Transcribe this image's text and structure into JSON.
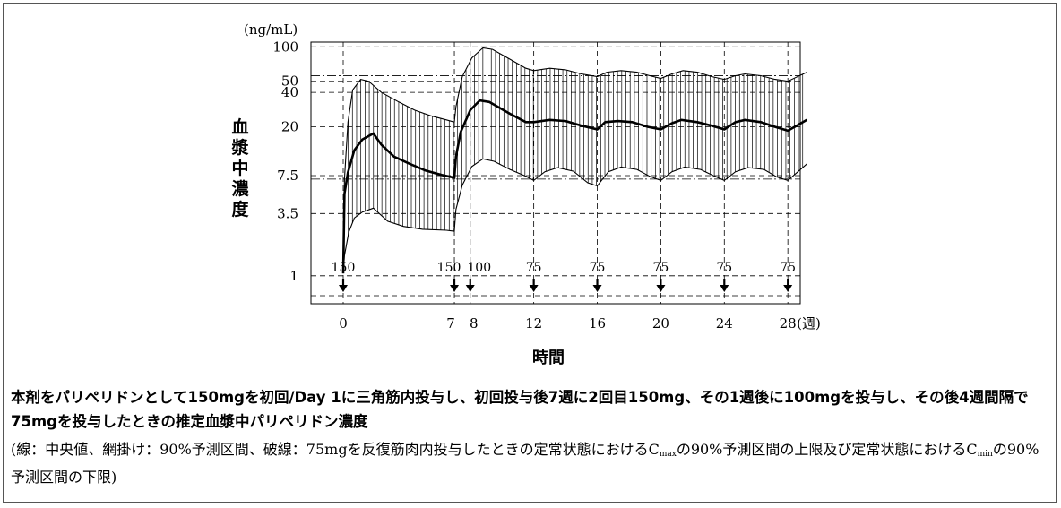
{
  "chart_data": {
    "type": "line",
    "title": "",
    "ylabel": "血漿中濃度",
    "yunit": "(ng/mL)",
    "xlabel": "時間",
    "xunit": "(週)",
    "yscale": "log",
    "ylim": [
      0.57,
      110
    ],
    "xlim": [
      -5,
      29.2
    ],
    "yticks": [
      1,
      3.5,
      7.5,
      20,
      40,
      50,
      100
    ],
    "xticks": [
      0,
      7,
      8,
      12,
      16,
      20,
      24,
      28
    ],
    "grid": true,
    "legend": "none",
    "dose_marks": [
      {
        "week": 0,
        "label": "150"
      },
      {
        "week": 7,
        "label": "150"
      },
      {
        "week": 8,
        "label": "100"
      },
      {
        "week": 12,
        "label": "75"
      },
      {
        "week": 16,
        "label": "75"
      },
      {
        "week": 20,
        "label": "75"
      },
      {
        "week": 24,
        "label": "75"
      },
      {
        "week": 28,
        "label": "75"
      }
    ],
    "reference_lines": [
      56,
      7.0
    ],
    "series": [
      {
        "name": "中央値",
        "points": [
          [
            0,
            1.05
          ],
          [
            0.08,
            5.2
          ],
          [
            0.3,
            8
          ],
          [
            0.7,
            12.5
          ],
          [
            1.2,
            15.5
          ],
          [
            1.9,
            17.5
          ],
          [
            2.4,
            14
          ],
          [
            3.2,
            11
          ],
          [
            4.2,
            9.5
          ],
          [
            5.2,
            8.3
          ],
          [
            6.2,
            7.6
          ],
          [
            7,
            7.2
          ],
          [
            7.1,
            11
          ],
          [
            7.4,
            18
          ],
          [
            8,
            28
          ],
          [
            8.6,
            34
          ],
          [
            9.2,
            33
          ],
          [
            10.5,
            26
          ],
          [
            11.5,
            22
          ],
          [
            12,
            22
          ],
          [
            13,
            23
          ],
          [
            14,
            22.5
          ],
          [
            15,
            20.5
          ],
          [
            16,
            19
          ],
          [
            16.5,
            22
          ],
          [
            17.3,
            22.5
          ],
          [
            18.2,
            22
          ],
          [
            19.2,
            20
          ],
          [
            20,
            19
          ],
          [
            20.7,
            21.5
          ],
          [
            21.3,
            23
          ],
          [
            22.3,
            22
          ],
          [
            23.2,
            20.5
          ],
          [
            24,
            19
          ],
          [
            24.7,
            22
          ],
          [
            25.3,
            23
          ],
          [
            26.3,
            22
          ],
          [
            27.2,
            20
          ],
          [
            28,
            18.5
          ],
          [
            29.2,
            23
          ]
        ]
      },
      {
        "name": "90%予測区間 上限",
        "points": [
          [
            0,
            1.05
          ],
          [
            0.08,
            7
          ],
          [
            0.3,
            22
          ],
          [
            0.6,
            42
          ],
          [
            1.1,
            52
          ],
          [
            1.6,
            50
          ],
          [
            2.4,
            40
          ],
          [
            3.5,
            33
          ],
          [
            4.5,
            28
          ],
          [
            5.5,
            25
          ],
          [
            6.5,
            23
          ],
          [
            7,
            22
          ],
          [
            7.1,
            30
          ],
          [
            7.5,
            55
          ],
          [
            8.1,
            80
          ],
          [
            8.8,
            98
          ],
          [
            9.4,
            95
          ],
          [
            10.5,
            78
          ],
          [
            11.5,
            65
          ],
          [
            12,
            62
          ],
          [
            13,
            65
          ],
          [
            14,
            63
          ],
          [
            15,
            58
          ],
          [
            16,
            55
          ],
          [
            16.6,
            60
          ],
          [
            17.5,
            62
          ],
          [
            18.5,
            60
          ],
          [
            19.3,
            56
          ],
          [
            20,
            53
          ],
          [
            20.7,
            58
          ],
          [
            21.4,
            62
          ],
          [
            22.3,
            60
          ],
          [
            23.2,
            55
          ],
          [
            24,
            52
          ],
          [
            24.7,
            56
          ],
          [
            25.3,
            58
          ],
          [
            26.3,
            56
          ],
          [
            27.2,
            52
          ],
          [
            28,
            50
          ],
          [
            29.2,
            60
          ]
        ]
      },
      {
        "name": "90%予測区間 下限",
        "points": [
          [
            0,
            1.05
          ],
          [
            0.08,
            1.5
          ],
          [
            0.35,
            2.4
          ],
          [
            0.7,
            3.2
          ],
          [
            1.2,
            3.6
          ],
          [
            1.9,
            3.9
          ],
          [
            2.8,
            3.0
          ],
          [
            3.8,
            2.7
          ],
          [
            5,
            2.55
          ],
          [
            6.5,
            2.5
          ],
          [
            7,
            2.45
          ],
          [
            7.1,
            3.8
          ],
          [
            7.5,
            6.2
          ],
          [
            8.1,
            9
          ],
          [
            8.8,
            10.5
          ],
          [
            9.5,
            10
          ],
          [
            10.5,
            8.5
          ],
          [
            11.5,
            7.4
          ],
          [
            12,
            6.8
          ],
          [
            12.7,
            8.1
          ],
          [
            13.5,
            8.8
          ],
          [
            14.5,
            8.2
          ],
          [
            15.4,
            6.5
          ],
          [
            16,
            6.1
          ],
          [
            16.7,
            8.1
          ],
          [
            17.5,
            8.9
          ],
          [
            18.5,
            8.5
          ],
          [
            19.3,
            7.4
          ],
          [
            20,
            6.8
          ],
          [
            20.7,
            8.1
          ],
          [
            21.5,
            8.9
          ],
          [
            22.5,
            8.5
          ],
          [
            23.3,
            7.5
          ],
          [
            24,
            6.8
          ],
          [
            24.7,
            8.1
          ],
          [
            25.5,
            8.8
          ],
          [
            26.5,
            8.5
          ],
          [
            27.3,
            7.3
          ],
          [
            28,
            6.8
          ],
          [
            29.2,
            9.5
          ]
        ]
      }
    ]
  },
  "caption": {
    "title": "本剤をパリペリドンとして150mgを初回/Day 1に三角筋内投与し、初回投与後7週に2回目150mg、その1週後に100mgを投与し、その後4週間隔で75mgを投与したときの推定血漿中パリペリドン濃度",
    "note_part1": "(線：中央値、網掛け：90%予測区間、破線：75mgを反復筋肉内投与したときの定常状態におけるC",
    "note_sub1": "max",
    "note_part2": "の90%予測区間の上限及び定常状態におけるC",
    "note_sub2": "min",
    "note_part3": "の90%予測区間の下限)"
  }
}
